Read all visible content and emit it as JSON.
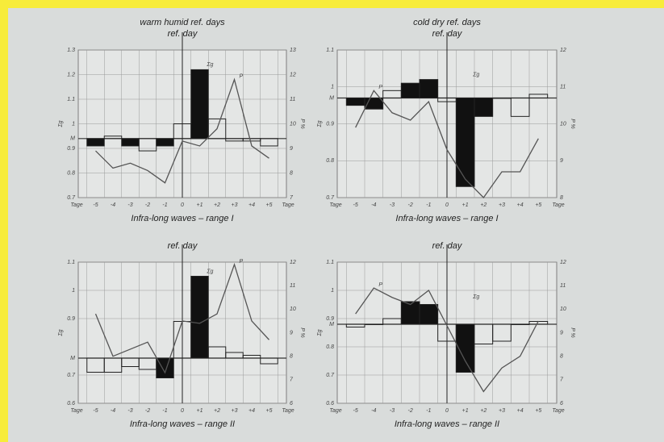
{
  "chart_data": [
    {
      "type": "step-line",
      "title": "warm humid ref. days",
      "subtitle": "ref. day",
      "caption": "Infra-long waves – range I",
      "x_label": "Tage",
      "y_label": "Σg",
      "y2_label": "P %",
      "categories": [
        "-5",
        "-4",
        "-3",
        "-2",
        "-1",
        "0",
        "+1",
        "+2",
        "+3",
        "+4",
        "+5"
      ],
      "ylim": [
        0.7,
        1.3
      ],
      "yticks": [
        0.7,
        0.8,
        0.9,
        {
          "value": 0.94,
          "label": "M"
        },
        1.0,
        1.1,
        1.2,
        1.3
      ],
      "y2lim": [
        7,
        13
      ],
      "y2ticks": [
        7,
        8,
        9,
        10,
        11,
        12,
        13
      ],
      "grid": true,
      "series": [
        {
          "name": "Σg",
          "colors": [
            "#111",
            "none",
            "#111",
            "none",
            "#111",
            "none",
            "#111",
            "none",
            "none",
            "none",
            "none"
          ],
          "values": [
            0.91,
            0.95,
            0.91,
            0.89,
            0.91,
            1.0,
            1.22,
            1.02,
            0.93,
            0.93,
            0.91
          ]
        },
        {
          "name": "P",
          "axis": "y2",
          "color": "#555",
          "values": [
            8.9,
            8.2,
            8.4,
            8.1,
            7.6,
            9.3,
            9.1,
            9.8,
            11.8,
            9.1,
            8.6
          ]
        }
      ]
    },
    {
      "type": "step-line",
      "title": "cold dry ref. days",
      "subtitle": "ref. day",
      "caption": "Infra-long waves – range I",
      "x_label": "Tage",
      "y_label": "Σg",
      "y2_label": "P %",
      "categories": [
        "-5",
        "-4",
        "-3",
        "-2",
        "-1",
        "0",
        "+1",
        "+2",
        "+3",
        "+4",
        "+5"
      ],
      "ylim": [
        0.7,
        1.1
      ],
      "yticks": [
        0.7,
        0.8,
        0.9,
        {
          "value": 0.97,
          "label": "M"
        },
        1.0,
        1.1
      ],
      "y2lim": [
        8,
        12
      ],
      "y2ticks": [
        8,
        9,
        10,
        11,
        12
      ],
      "grid": true,
      "series": [
        {
          "name": "Σg",
          "colors": [
            "#111",
            "#111",
            "none",
            "#111",
            "#111",
            "none",
            "#111",
            "#111",
            "none",
            "none",
            "none"
          ],
          "values": [
            0.95,
            0.94,
            0.99,
            1.01,
            1.02,
            0.96,
            0.73,
            0.92,
            0.97,
            0.92,
            0.98
          ]
        },
        {
          "name": "P",
          "axis": "y2",
          "color": "#555",
          "values": [
            9.9,
            10.9,
            10.3,
            10.1,
            10.6,
            9.3,
            8.5,
            8.0,
            8.7,
            8.7,
            9.6
          ]
        }
      ]
    },
    {
      "type": "step-line",
      "subtitle": "ref. day",
      "caption": "Infra-long waves – range II",
      "x_label": "Tage",
      "y_label": "Σg",
      "y2_label": "P %",
      "categories": [
        "-5",
        "-4",
        "-3",
        "-2",
        "-1",
        "0",
        "+1",
        "+2",
        "+3",
        "+4",
        "+5"
      ],
      "ylim": [
        0.6,
        1.1
      ],
      "yticks": [
        0.6,
        0.7,
        {
          "value": 0.76,
          "label": "M"
        },
        0.9,
        1.0,
        1.1
      ],
      "y2lim": [
        6,
        12
      ],
      "y2ticks": [
        6,
        7,
        8,
        9,
        10,
        11,
        12
      ],
      "grid": true,
      "series": [
        {
          "name": "Σg",
          "colors": [
            "none",
            "none",
            "none",
            "none",
            "#111",
            "none",
            "#111",
            "none",
            "none",
            "none",
            "none"
          ],
          "values": [
            0.71,
            0.71,
            0.73,
            0.72,
            0.69,
            0.89,
            1.05,
            0.8,
            0.78,
            0.77,
            0.74
          ]
        },
        {
          "name": "P",
          "axis": "y2",
          "color": "#555",
          "values": [
            9.8,
            8.0,
            8.3,
            8.6,
            7.3,
            9.5,
            9.4,
            9.8,
            11.9,
            9.5,
            8.7
          ]
        }
      ]
    },
    {
      "type": "step-line",
      "subtitle": "ref. day",
      "caption": "Infra-long waves – range II",
      "x_label": "Tage",
      "y_label": "Σg",
      "y2_label": "P %",
      "categories": [
        "-5",
        "-4",
        "-3",
        "-2",
        "-1",
        "0",
        "+1",
        "+2",
        "+3",
        "+4",
        "+5"
      ],
      "ylim": [
        0.6,
        1.1
      ],
      "yticks": [
        0.6,
        0.7,
        0.8,
        {
          "value": 0.88,
          "label": "M"
        },
        0.9,
        1.0,
        1.1
      ],
      "y2lim": [
        6,
        12
      ],
      "y2ticks": [
        6,
        7,
        8,
        9,
        10,
        11,
        12
      ],
      "grid": true,
      "series": [
        {
          "name": "Σg",
          "colors": [
            "none",
            "none",
            "none",
            "#111",
            "#111",
            "none",
            "#111",
            "none",
            "none",
            "none",
            "none"
          ],
          "values": [
            0.87,
            0.88,
            0.9,
            0.96,
            0.95,
            0.82,
            0.71,
            0.81,
            0.82,
            0.88,
            0.89
          ]
        },
        {
          "name": "P",
          "axis": "y2",
          "color": "#555",
          "values": [
            9.8,
            10.9,
            10.5,
            10.2,
            10.8,
            9.3,
            7.8,
            6.5,
            7.5,
            8.0,
            9.5
          ]
        }
      ]
    }
  ]
}
